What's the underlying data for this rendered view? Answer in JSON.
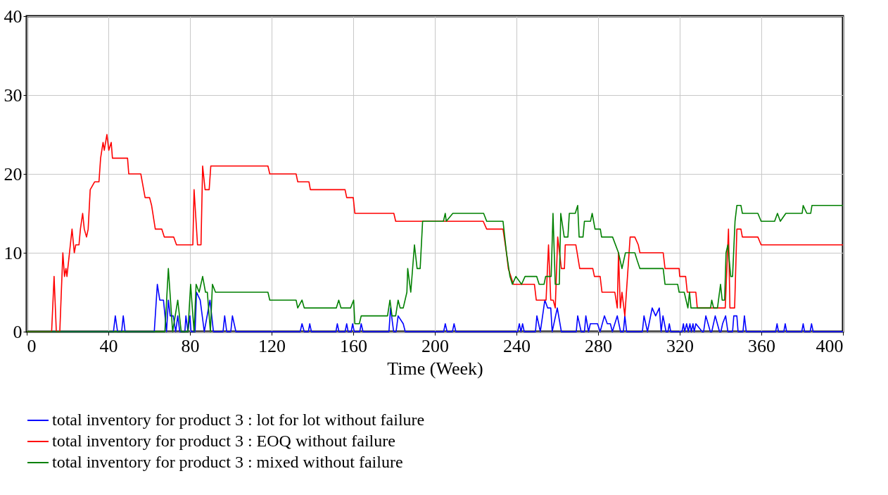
{
  "chart_data": {
    "type": "line",
    "xlabel": "Time (Week)",
    "xlim": [
      0,
      400
    ],
    "ylim": [
      0,
      40
    ],
    "xticks": [
      0,
      40,
      80,
      120,
      160,
      200,
      240,
      280,
      320,
      360,
      400
    ],
    "yticks": [
      0,
      10,
      20,
      30,
      40
    ],
    "grid": true,
    "legend": "bottom",
    "marker": "none",
    "line_style": "solid",
    "series": [
      {
        "name": "total inventory for product 3 : lot for lot without failure",
        "color": "#0000ff",
        "x": [
          0,
          42.5,
          43.4,
          44.5,
          46.5,
          47.3,
          48.2,
          62.5,
          64,
          65.2,
          67,
          68.5,
          69.4,
          70.3,
          71.8,
          73,
          74,
          75,
          77.5,
          78,
          79,
          80,
          80.5,
          82.5,
          83.2,
          85,
          87,
          89.8,
          91.5,
          96.2,
          97,
          98,
          100,
          100.8,
          102.5,
          134,
          134.9,
          136,
          138,
          138.7,
          139.5,
          151.5,
          152.2,
          153,
          156,
          156.8,
          157.5,
          159,
          159.7,
          160.5,
          163.2,
          163.9,
          164.8,
          177.5,
          178.3,
          179.8,
          181,
          182,
          184.5,
          185.5,
          204.3,
          205.1,
          206,
          208.6,
          209.4,
          210.3,
          240.6,
          241.4,
          242.2,
          243,
          243.8,
          249.3,
          250,
          251.7,
          253.9,
          255.3,
          256.8,
          257.5,
          260,
          262,
          269.3,
          270,
          271.7,
          273.3,
          274,
          275.3,
          276.2,
          279.7,
          281,
          283.1,
          284.5,
          286,
          287,
          289.4,
          291,
          292.4,
          293.1,
          294,
          301.7,
          302.5,
          304.2,
          306.5,
          308.2,
          310,
          310.9,
          311.8,
          313.3,
          314.2,
          314.9,
          315.6,
          321.1,
          321.8,
          322.4,
          323.4,
          324.2,
          325,
          325.7,
          326.5,
          327.1,
          327.9,
          331,
          331.7,
          332.8,
          335,
          335.7,
          337.4,
          339.5,
          340.2,
          341,
          342.5,
          343.6,
          345.9,
          346.5,
          348,
          348.6,
          351,
          351.7,
          352.6,
          367,
          367.7,
          368.4,
          371,
          371.7,
          372.4,
          379.8,
          380.5,
          381.2,
          383.9,
          384.6,
          385.4,
          400
        ],
        "values": [
          0,
          0,
          2,
          0,
          0,
          2,
          0,
          0,
          6,
          4,
          4,
          0,
          4,
          2,
          2,
          0,
          2,
          0,
          0,
          2,
          0,
          2,
          0,
          0,
          5,
          4,
          0,
          4,
          0,
          0,
          2,
          0,
          0,
          2,
          0,
          0,
          1,
          0,
          0,
          1,
          0,
          0,
          1,
          0,
          0,
          1,
          0,
          0,
          1,
          0,
          0,
          1,
          0,
          0,
          3,
          0,
          0,
          2,
          1,
          0,
          0,
          1,
          0,
          0,
          1,
          0,
          0,
          1,
          0,
          1,
          0,
          0,
          2,
          0,
          4,
          3,
          3,
          0,
          3,
          0,
          0,
          2,
          0,
          0,
          2,
          0,
          1,
          1,
          0,
          2,
          1,
          1,
          0,
          2,
          0,
          0,
          2,
          0,
          0,
          2,
          0,
          3,
          2,
          3,
          0,
          2,
          0,
          0,
          1,
          0,
          0,
          1,
          0,
          1,
          0,
          1,
          0,
          1,
          0,
          1,
          0,
          0,
          2,
          0,
          0,
          2,
          0,
          0,
          1,
          2,
          0,
          0,
          2,
          2,
          0,
          0,
          2,
          0,
          0,
          1,
          0,
          0,
          1,
          0,
          0,
          1,
          0,
          0,
          1,
          0,
          0
        ]
      },
      {
        "name": "total inventory for product 3 : EOQ without failure",
        "color": "#ff0000",
        "x": [
          0,
          12.2,
          13.4,
          14.5,
          16.2,
          17.7,
          18.5,
          19.2,
          19.7,
          22.2,
          23.3,
          24,
          25.6,
          26.3,
          27.4,
          28.2,
          29.3,
          30.1,
          31.1,
          33.3,
          35.4,
          36.2,
          37.4,
          38,
          39.3,
          40.2,
          41.4,
          42,
          49.4,
          50,
          55.9,
          58,
          60.2,
          61.2,
          63,
          66.2,
          67.4,
          72,
          73.4,
          81.4,
          82,
          83.7,
          85.4,
          86.2,
          87.4,
          89.4,
          90.2,
          118.2,
          119.1,
          132,
          132.8,
          138.3,
          139,
          156,
          156.8,
          160,
          160.8,
          179.9,
          180.8,
          223.7,
          225.4,
          233.4,
          235.1,
          236,
          238.5,
          248.8,
          249.7,
          254.5,
          255.7,
          256.8,
          258,
          259,
          260.2,
          262,
          263.5,
          263.9,
          269.1,
          271,
          277.4,
          278.2,
          281,
          281.9,
          288.2,
          289.4,
          290,
          290.9,
          291.7,
          293.1,
          295.7,
          298,
          299.7,
          300.5,
          311.9,
          312.8,
          319.7,
          320,
          322.9,
          323.7,
          327.9,
          328.6,
          342.3,
          343.9,
          344.6,
          346.9,
          348,
          350,
          350.7,
          358.3,
          359.9,
          400
        ],
        "values": [
          0,
          0,
          7,
          0,
          0,
          10,
          7,
          8,
          7,
          13,
          10,
          11,
          11,
          13,
          15,
          13,
          12,
          13,
          18,
          19,
          19,
          22,
          24,
          23,
          25,
          23,
          24,
          22,
          22,
          20,
          20,
          17,
          17,
          16,
          13,
          13,
          12,
          12,
          11,
          11,
          18,
          11,
          11,
          21,
          18,
          18,
          21,
          21,
          20,
          20,
          19,
          19,
          18,
          18,
          17,
          17,
          15,
          15,
          14,
          14,
          13,
          13,
          10,
          8,
          6,
          6,
          4,
          4,
          11,
          4,
          4,
          3,
          12,
          8,
          8,
          11,
          11,
          8,
          8,
          7,
          7,
          5,
          5,
          3,
          10,
          3,
          5,
          2,
          12,
          12,
          11,
          10,
          10,
          8,
          8,
          7,
          7,
          5,
          5,
          3,
          3,
          13,
          3,
          3,
          13,
          13,
          12,
          12,
          11,
          11
        ]
      },
      {
        "name": "total inventory for product 3 : mixed without failure",
        "color": "#008000",
        "x": [
          0,
          67.7,
          69.4,
          71.5,
          74,
          75.7,
          79,
          80.3,
          82,
          83,
          84.5,
          86.2,
          87.6,
          88.5,
          90,
          91,
          92.5,
          118.2,
          119.1,
          132,
          132.8,
          134.9,
          136,
          151.7,
          152.9,
          154,
          158.7,
          160.2,
          160.8,
          163,
          163.9,
          176.8,
          178,
          179,
          180.8,
          182,
          183,
          184.5,
          186.3,
          186.7,
          188.2,
          190,
          191.3,
          192.8,
          194,
          204.2,
          205.1,
          205.6,
          208.8,
          223.9,
          225.4,
          233.4,
          235.1,
          236.8,
          238,
          239.7,
          242.5,
          244.2,
          249.9,
          251.1,
          253.5,
          254.3,
          257,
          257.9,
          259,
          261,
          261.7,
          263.4,
          265.2,
          265.9,
          268.8,
          270,
          270.7,
          272.6,
          273.3,
          276.3,
          277.1,
          278.5,
          281.1,
          281.7,
          287.1,
          290,
          291.7,
          293.4,
          298,
          299.2,
          300.5,
          311.9,
          312.8,
          319,
          319.7,
          322.2,
          324,
          324.8,
          325.5,
          335.1,
          335.7,
          336.6,
          338.5,
          340,
          340.8,
          342,
          342.7,
          343.6,
          345,
          345.9,
          347.1,
          348,
          350,
          350.7,
          358.3,
          359.9,
          366.5,
          367.9,
          369.3,
          372,
          380,
          380.5,
          382.3,
          384.2,
          384.8,
          400
        ],
        "values": [
          0,
          0,
          8,
          0,
          4,
          0,
          0,
          6,
          0,
          6,
          5,
          7,
          5,
          5,
          0,
          6,
          5,
          5,
          4,
          4,
          3,
          4,
          3,
          3,
          4,
          3,
          3,
          4,
          1,
          1,
          2,
          2,
          4,
          2,
          2,
          4,
          3,
          3,
          5,
          8,
          5,
          11,
          8,
          8,
          14,
          14,
          15,
          14,
          15,
          15,
          14,
          14,
          10,
          7,
          6,
          7,
          6,
          7,
          7,
          6,
          6,
          7,
          7,
          15,
          6,
          6,
          15,
          12,
          12,
          15,
          15,
          16,
          12,
          12,
          14,
          14,
          15,
          13,
          13,
          12,
          12,
          10,
          8,
          10,
          10,
          9,
          8,
          8,
          6,
          6,
          5,
          5,
          3,
          5,
          3,
          3,
          4,
          3,
          3,
          6,
          4,
          4,
          10,
          11,
          7,
          7,
          14,
          16,
          16,
          15,
          15,
          14,
          14,
          15,
          14,
          15,
          15,
          16,
          15,
          15,
          16,
          16
        ]
      }
    ]
  }
}
